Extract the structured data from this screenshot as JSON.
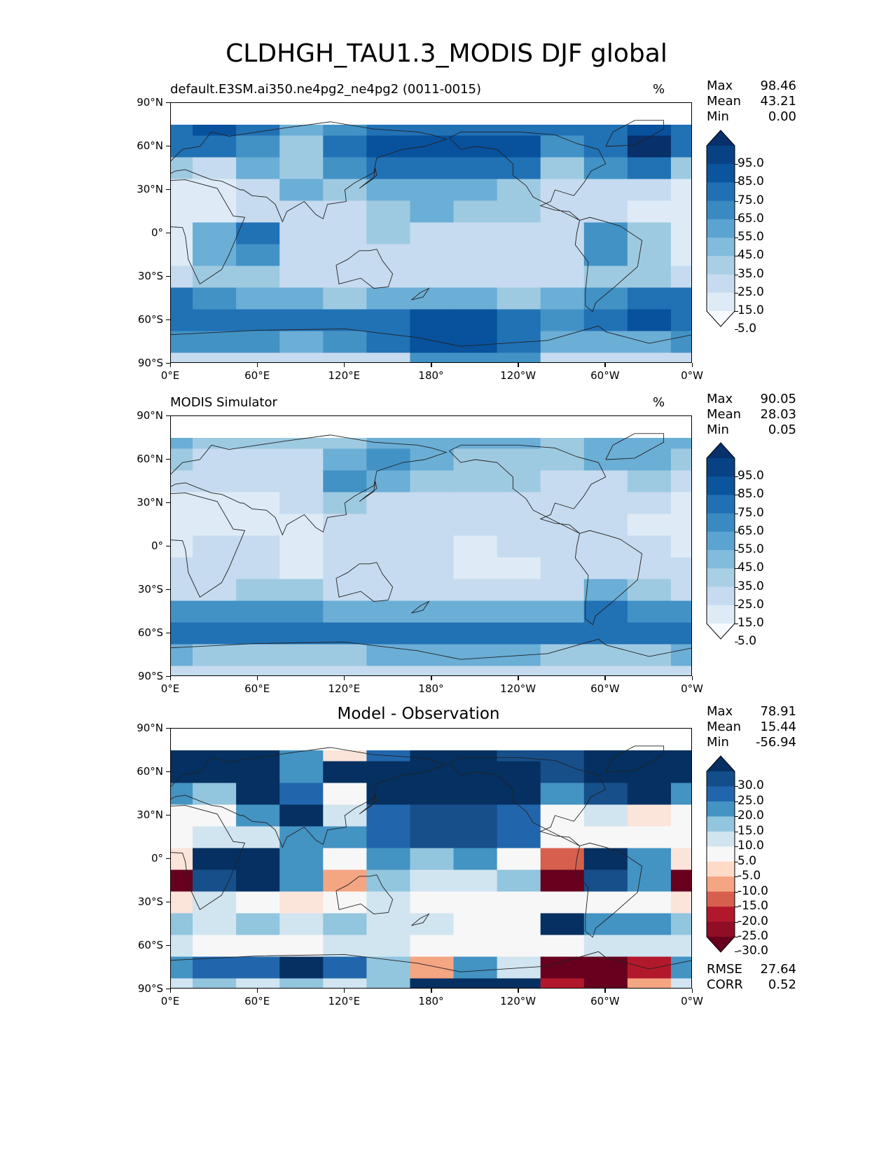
{
  "figure_title": "CLDHGH_TAU1.3_MODIS DJF global",
  "panels": [
    {
      "subtitle": "default.E3SM.ai350.ne4pg2_ne4pg2 (0011-0015)",
      "units": "%",
      "stats": [
        {
          "label": "Max",
          "value": "98.46"
        },
        {
          "label": "Mean",
          "value": "43.21"
        },
        {
          "label": "Min",
          "value": "0.00"
        }
      ],
      "colorbar_labels": [
        "95.0",
        "85.0",
        "75.0",
        "65.0",
        "55.0",
        "45.0",
        "35.0",
        "25.0",
        "15.0",
        "5.0"
      ]
    },
    {
      "subtitle": "MODIS Simulator",
      "units": "%",
      "stats": [
        {
          "label": "Max",
          "value": "90.05"
        },
        {
          "label": "Mean",
          "value": "28.03"
        },
        {
          "label": "Min",
          "value": "0.05"
        }
      ],
      "colorbar_labels": [
        "95.0",
        "85.0",
        "75.0",
        "65.0",
        "55.0",
        "45.0",
        "35.0",
        "25.0",
        "15.0",
        "5.0"
      ]
    },
    {
      "title": "Model - Observation",
      "stats": [
        {
          "label": "Max",
          "value": "78.91"
        },
        {
          "label": "Mean",
          "value": "15.44"
        },
        {
          "label": "Min",
          "value": "-56.94"
        }
      ],
      "colorbar_labels": [
        "30.0",
        "25.0",
        "20.0",
        "15.0",
        "10.0",
        "5.0",
        "-5.0",
        "-10.0",
        "-15.0",
        "-20.0",
        "-25.0",
        "-30.0"
      ],
      "metrics": [
        {
          "label": "RMSE",
          "value": "27.64"
        },
        {
          "label": "CORR",
          "value": "0.52"
        }
      ]
    }
  ],
  "lat_ticks": [
    "90°N",
    "60°N",
    "30°N",
    "0°",
    "30°S",
    "60°S",
    "90°S"
  ],
  "lon_ticks": [
    "0°E",
    "60°E",
    "120°E",
    "180°",
    "120°W",
    "60°W",
    "0°W"
  ],
  "colors": {
    "seq_blues": [
      "#f7fbff",
      "#deebf7",
      "#c6dbef",
      "#9ecae1",
      "#6baed6",
      "#4292c6",
      "#2171b5",
      "#08519c",
      "#08306b"
    ],
    "diverging": [
      "#67001f",
      "#b2182b",
      "#d6604d",
      "#f4a582",
      "#fddbc7",
      "#f7f7f7",
      "#d1e5f0",
      "#92c5de",
      "#4393c3",
      "#2166ac",
      "#053061"
    ]
  },
  "chart_data": [
    {
      "type": "heatmap",
      "title": "default.E3SM.ai350.ne4pg2_ne4pg2 (0011-0015)",
      "units": "%",
      "projection": "PlateCarree",
      "xlim": [
        0,
        360
      ],
      "ylim": [
        -90,
        90
      ],
      "levels": [
        0,
        5,
        15,
        25,
        35,
        45,
        55,
        65,
        75,
        85,
        95,
        100
      ],
      "lon": [
        0,
        30,
        60,
        90,
        120,
        150,
        180,
        210,
        240,
        270,
        300,
        330,
        360
      ],
      "lat": [
        75,
        60,
        45,
        30,
        15,
        0,
        -15,
        -30,
        -45,
        -60,
        -75,
        -90
      ],
      "values": [
        [
          80,
          85,
          70,
          50,
          60,
          70,
          75,
          75,
          70,
          65,
          75,
          85,
          80
        ],
        [
          65,
          80,
          55,
          40,
          75,
          90,
          85,
          85,
          85,
          60,
          80,
          95,
          65
        ],
        [
          40,
          30,
          45,
          35,
          55,
          80,
          80,
          75,
          70,
          40,
          55,
          65,
          40
        ],
        [
          5,
          5,
          25,
          45,
          40,
          45,
          50,
          45,
          35,
          15,
          20,
          15,
          5
        ],
        [
          5,
          10,
          15,
          25,
          30,
          40,
          45,
          40,
          35,
          15,
          15,
          10,
          5
        ],
        [
          10,
          50,
          70,
          25,
          20,
          35,
          25,
          25,
          30,
          20,
          60,
          35,
          10
        ],
        [
          10,
          45,
          55,
          25,
          15,
          25,
          20,
          15,
          25,
          20,
          55,
          40,
          10
        ],
        [
          30,
          35,
          35,
          30,
          20,
          25,
          20,
          15,
          20,
          25,
          35,
          35,
          30
        ],
        [
          70,
          55,
          45,
          45,
          40,
          45,
          50,
          45,
          40,
          45,
          60,
          70,
          70
        ],
        [
          75,
          70,
          80,
          75,
          75,
          80,
          90,
          85,
          70,
          60,
          80,
          85,
          75
        ],
        [
          60,
          60,
          55,
          50,
          60,
          65,
          85,
          85,
          80,
          50,
          45,
          50,
          60
        ],
        [
          30,
          30,
          25,
          25,
          25,
          30,
          55,
          60,
          55,
          25,
          20,
          25,
          30
        ]
      ]
    },
    {
      "type": "heatmap",
      "title": "MODIS Simulator",
      "units": "%",
      "projection": "PlateCarree",
      "xlim": [
        0,
        360
      ],
      "ylim": [
        -90,
        90
      ],
      "levels": [
        0,
        5,
        15,
        25,
        35,
        45,
        55,
        65,
        75,
        85,
        95,
        100
      ],
      "lon": [
        0,
        30,
        60,
        90,
        120,
        150,
        180,
        210,
        240,
        270,
        300,
        330,
        360
      ],
      "lat": [
        75,
        60,
        45,
        30,
        15,
        0,
        -15,
        -30,
        -45,
        -60,
        -75,
        -90
      ],
      "values": [
        [
          45,
          40,
          35,
          35,
          40,
          45,
          45,
          45,
          45,
          40,
          45,
          45,
          45
        ],
        [
          35,
          30,
          25,
          25,
          45,
          55,
          45,
          40,
          40,
          35,
          50,
          45,
          35
        ],
        [
          25,
          20,
          15,
          15,
          60,
          45,
          35,
          35,
          35,
          25,
          30,
          35,
          25
        ],
        [
          10,
          5,
          10,
          15,
          35,
          25,
          25,
          20,
          15,
          15,
          15,
          15,
          10
        ],
        [
          5,
          5,
          10,
          10,
          15,
          20,
          20,
          15,
          15,
          20,
          15,
          10,
          5
        ],
        [
          10,
          15,
          15,
          10,
          20,
          20,
          15,
          10,
          15,
          25,
          25,
          20,
          10
        ],
        [
          20,
          20,
          15,
          10,
          15,
          20,
          15,
          10,
          10,
          30,
          30,
          25,
          20
        ],
        [
          30,
          30,
          35,
          40,
          25,
          20,
          20,
          15,
          20,
          30,
          45,
          40,
          30
        ],
        [
          55,
          55,
          60,
          60,
          50,
          50,
          45,
          45,
          50,
          50,
          65,
          60,
          55
        ],
        [
          70,
          75,
          80,
          75,
          70,
          70,
          65,
          70,
          75,
          70,
          75,
          75,
          70
        ],
        [
          45,
          40,
          35,
          35,
          40,
          45,
          45,
          50,
          45,
          40,
          40,
          40,
          45
        ],
        [
          25,
          20,
          20,
          20,
          20,
          25,
          25,
          25,
          25,
          20,
          20,
          20,
          25
        ]
      ]
    },
    {
      "type": "heatmap",
      "title": "Model - Observation",
      "projection": "PlateCarree",
      "xlim": [
        0,
        360
      ],
      "ylim": [
        -90,
        90
      ],
      "levels": [
        -57,
        -30,
        -25,
        -20,
        -15,
        -10,
        -5,
        5,
        10,
        15,
        20,
        25,
        30,
        79
      ],
      "lon": [
        0,
        30,
        60,
        90,
        120,
        150,
        180,
        210,
        240,
        270,
        300,
        330,
        360
      ],
      "lat": [
        75,
        60,
        45,
        30,
        15,
        0,
        -15,
        -30,
        -45,
        -60,
        -75,
        -90
      ],
      "values": [
        [
          35,
          45,
          35,
          15,
          -8,
          20,
          30,
          30,
          25,
          25,
          30,
          40,
          35
        ],
        [
          30,
          50,
          30,
          15,
          30,
          35,
          40,
          45,
          45,
          25,
          30,
          50,
          30
        ],
        [
          15,
          10,
          30,
          20,
          -5,
          35,
          45,
          40,
          35,
          15,
          25,
          30,
          15
        ],
        [
          -5,
          0,
          15,
          30,
          5,
          20,
          25,
          25,
          20,
          0,
          5,
          -10,
          -5
        ],
        [
          0,
          5,
          5,
          15,
          15,
          20,
          25,
          25,
          20,
          -5,
          0,
          0,
          0
        ],
        [
          -10,
          35,
          55,
          15,
          0,
          15,
          10,
          15,
          -5,
          -25,
          35,
          15,
          -10
        ],
        [
          -35,
          25,
          40,
          15,
          -20,
          10,
          5,
          5,
          10,
          -35,
          25,
          15,
          -35
        ],
        [
          -10,
          5,
          0,
          -10,
          -5,
          5,
          0,
          0,
          0,
          -5,
          -5,
          -5,
          -10
        ],
        [
          10,
          5,
          10,
          5,
          10,
          5,
          5,
          0,
          -5,
          30,
          15,
          15,
          10
        ],
        [
          5,
          0,
          0,
          0,
          5,
          5,
          0,
          0,
          -5,
          -5,
          5,
          5,
          5
        ],
        [
          15,
          20,
          20,
          30,
          20,
          10,
          -20,
          15,
          5,
          -40,
          -55,
          -30,
          15
        ],
        [
          5,
          10,
          5,
          10,
          5,
          10,
          30,
          35,
          30,
          -30,
          -35,
          -20,
          5
        ]
      ]
    }
  ]
}
